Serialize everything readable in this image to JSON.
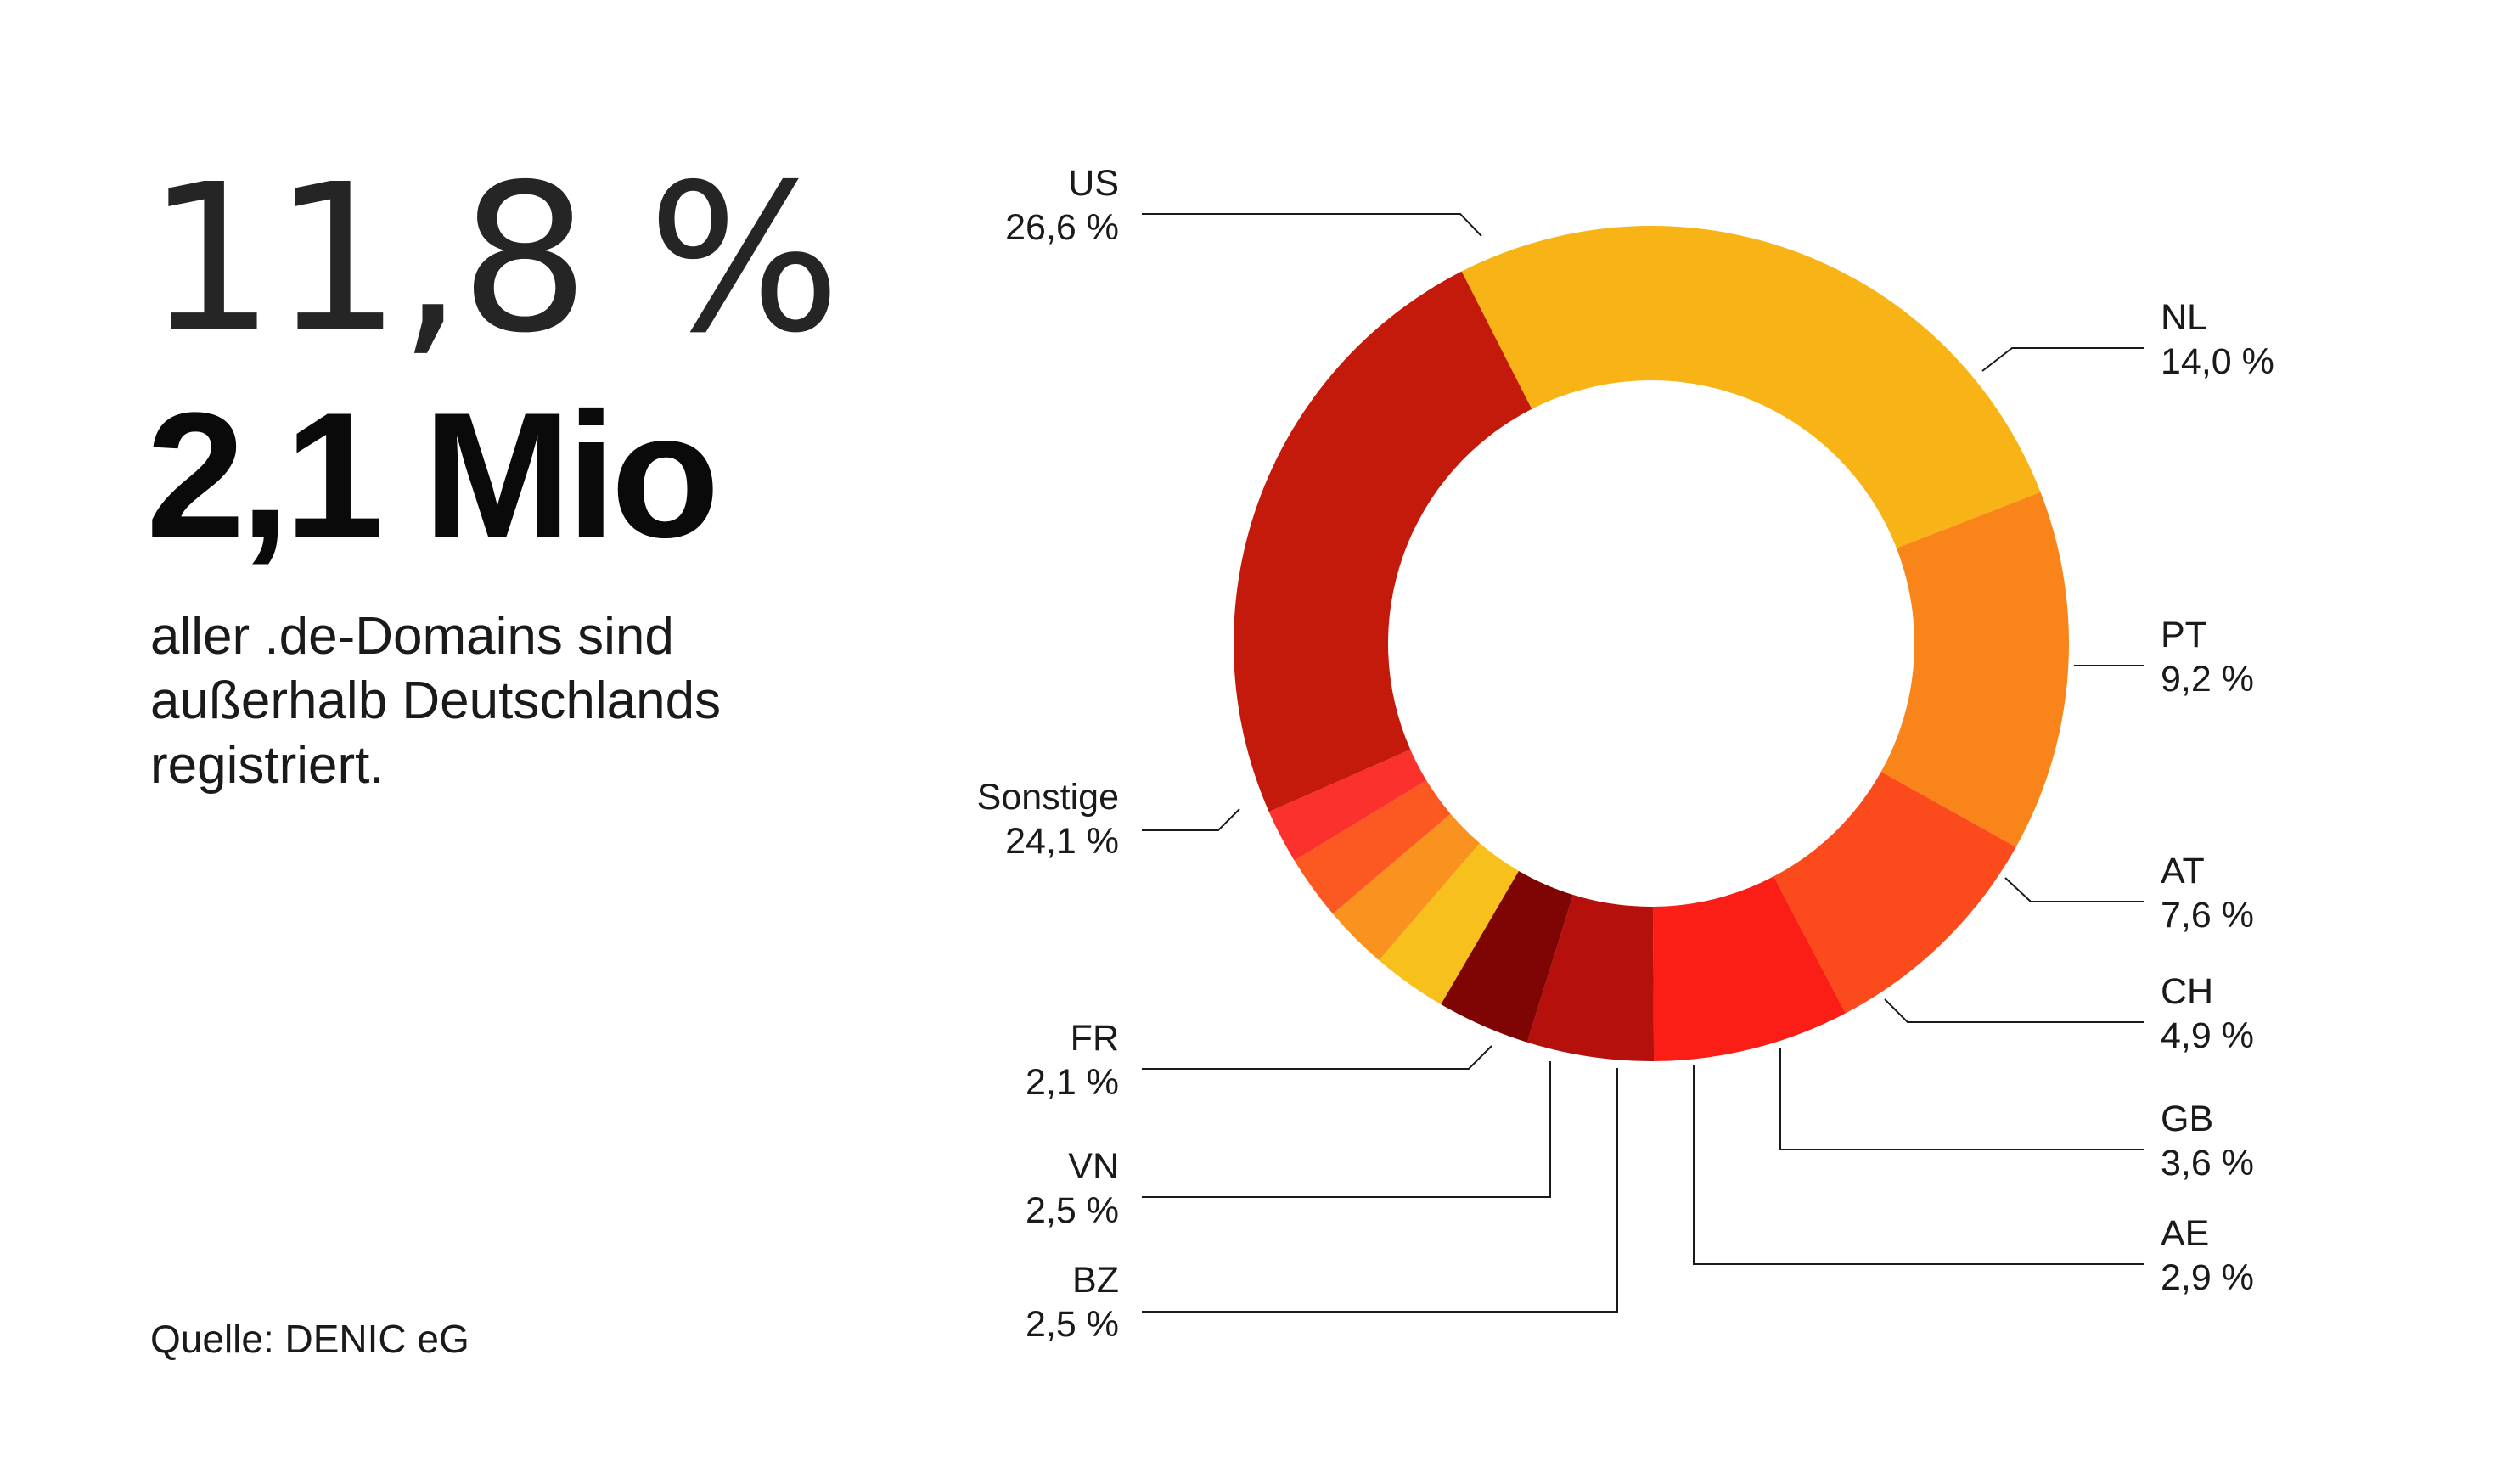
{
  "headline": {
    "share_percent": "11,8 %",
    "share_count": "2,1 Mio",
    "description_lines": [
      "aller .de-Domains sind",
      "außerhalb Deutschlands",
      "registriert."
    ],
    "source": "Quelle: DENIC eG"
  },
  "chart_data": {
    "type": "pie",
    "variant": "donut",
    "categories": [
      "US",
      "NL",
      "PT",
      "AT",
      "CH",
      "GB",
      "AE",
      "BZ",
      "VN",
      "FR",
      "Sonstige"
    ],
    "values": [
      26.6,
      14.0,
      9.2,
      7.6,
      4.9,
      3.6,
      2.9,
      2.5,
      2.5,
      2.1,
      24.1
    ],
    "value_labels": [
      "26,6 %",
      "14,0 %",
      "9,2 %",
      "7,6 %",
      "4,9 %",
      "3,6 %",
      "2,9 %",
      "2,5 %",
      "2,5 %",
      "2,1 %",
      "24,1 %"
    ],
    "colors": [
      "#F8B416",
      "#F9841A",
      "#FB4A1C",
      "#FA1E17",
      "#B5100C",
      "#7F0504",
      "#F8C01C",
      "#F9921F",
      "#FC5922",
      "#FB312E",
      "#C31A0B"
    ],
    "start_angle_deg": -27,
    "direction": "clockwise",
    "legend": "none"
  }
}
